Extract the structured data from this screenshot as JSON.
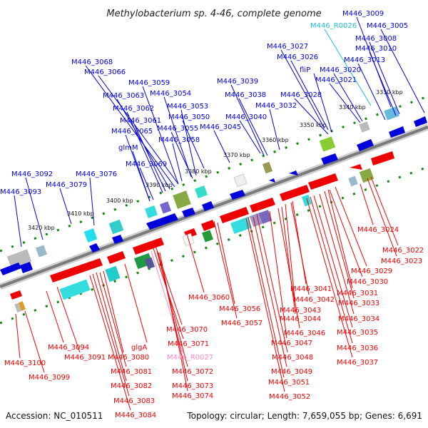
{
  "title": "Methylobacterium sp. 4-46, complete genome",
  "accession": "Accession: NC_010511",
  "topology": "Topology: circular; Length: 7,659,055 bp; Genes: 6,691",
  "colors": {
    "forward": "#0000dd",
    "reverse": "#ee0000",
    "rna_forward": "#22bbdd",
    "rna_reverse": "#ff88cc",
    "tick": "#118811",
    "backbone": "#7a7a7a"
  },
  "kbp_ticks": [
    "3330 kbp",
    "3340 kbp",
    "3350 kbp",
    "3360 kbp",
    "3370 kbp",
    "3380 kbp",
    "3390 kbp",
    "3400 kbp",
    "3410 kbp",
    "3420 kbp"
  ],
  "upper_labels": [
    "M446_3009",
    "M446_3005",
    "M446_R0026",
    "M446_3008",
    "M446_3010",
    "M446_3027",
    "M446_3013",
    "M446_3026",
    "fliP",
    "M446_3020",
    "M446_3021",
    "M446_3068",
    "M446_3066",
    "M446_3039",
    "M446_3059",
    "M446_3038",
    "M446_3028",
    "M446_3063",
    "M446_3054",
    "M446_3032",
    "M446_3062",
    "M446_3053",
    "M446_3061",
    "M446_3050",
    "M446_3040",
    "M446_3065",
    "M446_3055",
    "M446_3045",
    "glmM",
    "M446_3058",
    "M446_3069",
    "M446_3092",
    "M446_3076",
    "M446_3079",
    "M446_3093"
  ],
  "lower_labels": [
    "M446_3024",
    "M446_3022",
    "M446_3023",
    "M446_3029",
    "M446_3030",
    "M446_3041",
    "M446_3031",
    "M446_3060",
    "M446_3042",
    "M446_3033",
    "M446_3056",
    "M446_3043",
    "M446_3044",
    "M446_3034",
    "M446_3057",
    "M446_3070",
    "M446_3046",
    "M446_3035",
    "M446_3047",
    "M446_3071",
    "M446_3094",
    "glgA",
    "M446_3036",
    "M446_3100",
    "M446_3091",
    "M446_3080",
    "M446_R0027",
    "M446_3048",
    "M446_3037",
    "M446_3072",
    "M446_3049",
    "M446_3081",
    "M446_3099",
    "M446_3051",
    "M446_3073",
    "M446_3082",
    "M446_3074",
    "M446_3052",
    "M446_3083",
    "M446_3084"
  ]
}
